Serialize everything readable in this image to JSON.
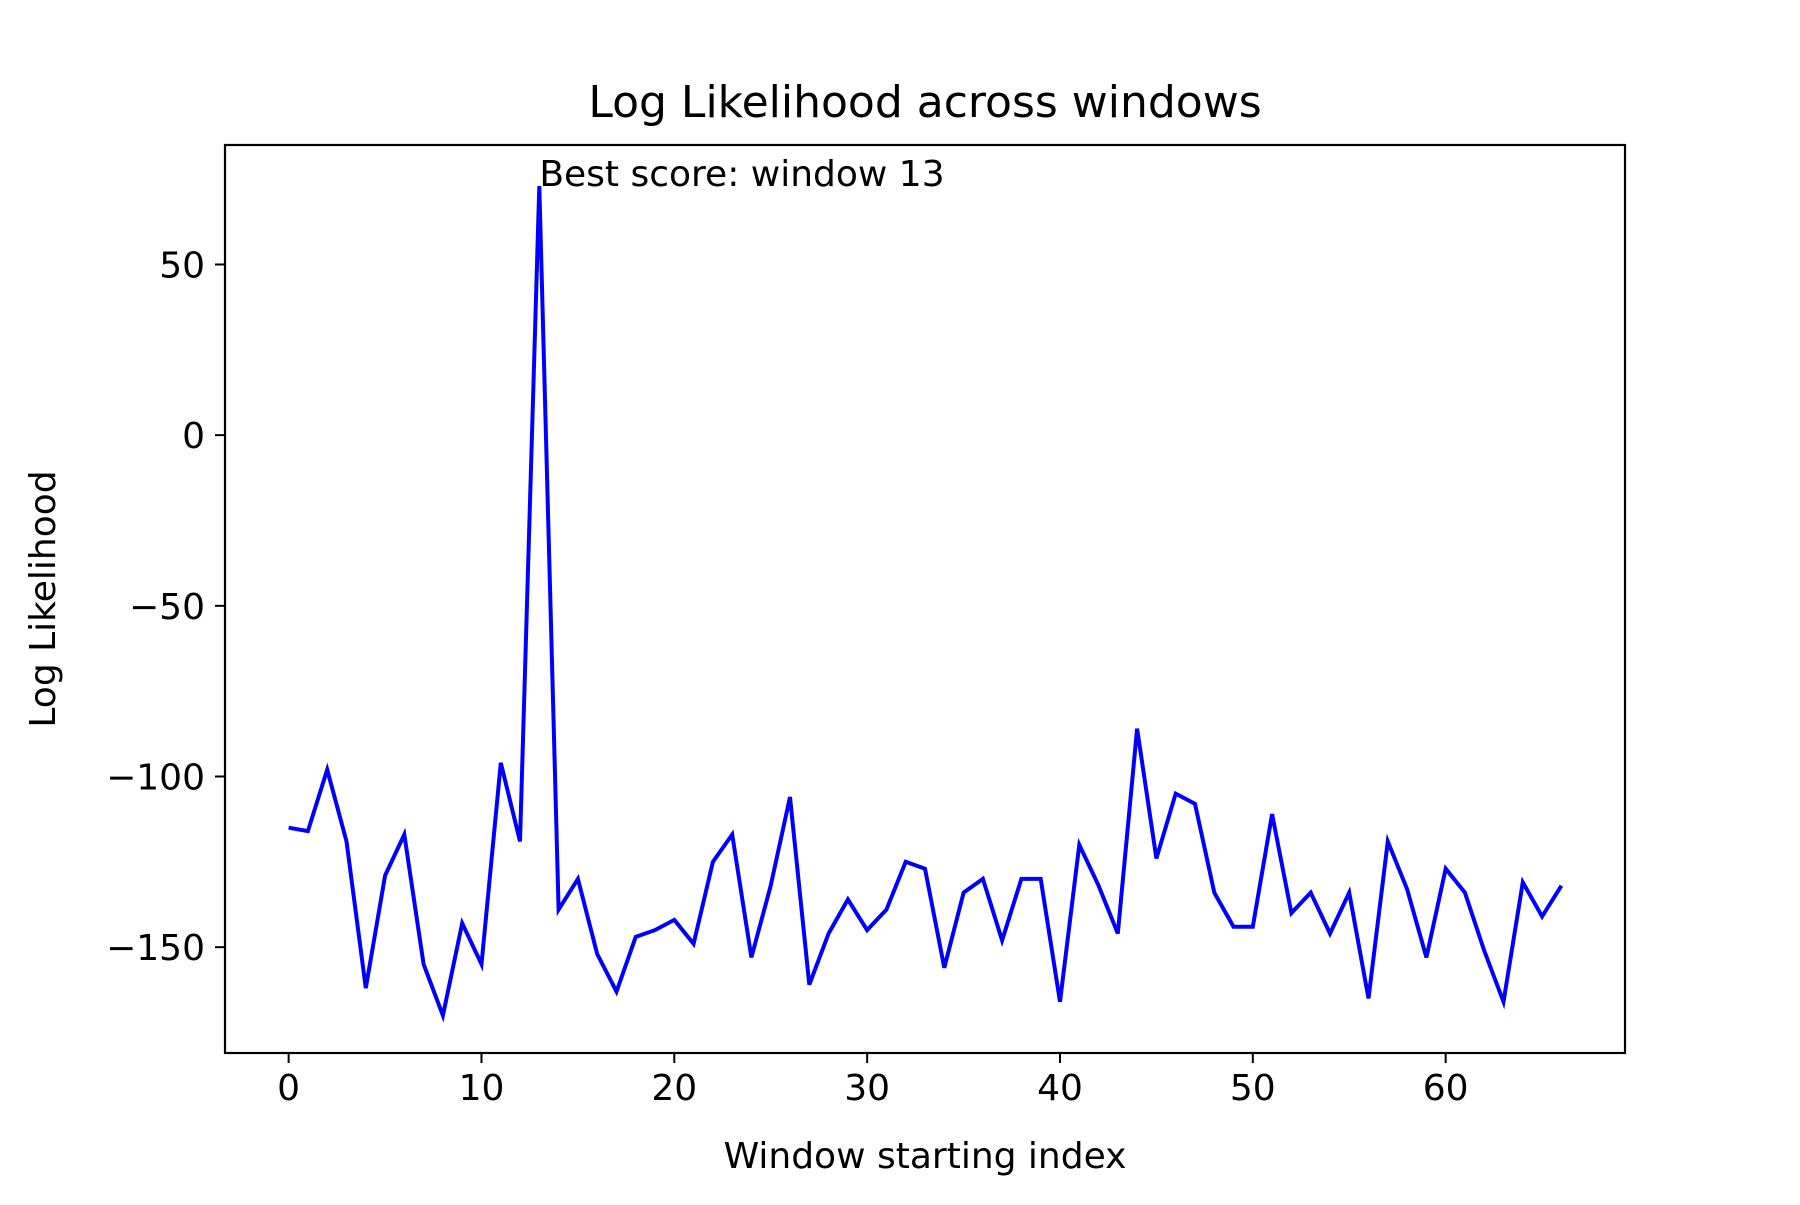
{
  "chart_data": {
    "type": "line",
    "title": "Log Likelihood across windows",
    "xlabel": "Window starting index",
    "ylabel": "Log Likelihood",
    "xlim": [
      -3.3,
      69.3
    ],
    "ylim": [
      -181,
      85
    ],
    "x_ticks": [
      0,
      10,
      20,
      30,
      40,
      50,
      60
    ],
    "y_ticks": [
      50,
      0,
      -50,
      -100,
      -150
    ],
    "x_tick_labels": [
      "0",
      "10",
      "20",
      "30",
      "40",
      "50",
      "60"
    ],
    "y_tick_labels": [
      "50",
      "0",
      "−50",
      "−100",
      "−150"
    ],
    "grid": false,
    "legend": "none",
    "annotation": {
      "text": "Best score: window 13",
      "x": 13,
      "y": 73
    },
    "series": [
      {
        "color": "#0000ff",
        "x": [
          0,
          1,
          2,
          3,
          4,
          5,
          6,
          7,
          8,
          9,
          10,
          11,
          12,
          13,
          14,
          15,
          16,
          17,
          18,
          19,
          20,
          21,
          22,
          23,
          24,
          25,
          26,
          27,
          28,
          29,
          30,
          31,
          32,
          33,
          34,
          35,
          36,
          37,
          38,
          39,
          40,
          41,
          42,
          43,
          44,
          45,
          46,
          47,
          48,
          49,
          50,
          51,
          52,
          53,
          54,
          55,
          56,
          57,
          58,
          59,
          60,
          61,
          62,
          63,
          64,
          65,
          66
        ],
        "values": [
          -115,
          -116,
          -98,
          -119,
          -162,
          -129,
          -117,
          -155,
          -170,
          -143,
          -155,
          -96,
          -119,
          73,
          -139,
          -130,
          -152,
          -163,
          -147,
          -145,
          -142,
          -149,
          -125,
          -117,
          -153,
          -132,
          -106,
          -161,
          -146,
          -136,
          -145,
          -139,
          -125,
          -127,
          -156,
          -134,
          -130,
          -148,
          -130,
          -130,
          -166,
          -120,
          -132,
          -146,
          -86,
          -124,
          -105,
          -108,
          -134,
          -144,
          -144,
          -111,
          -140,
          -134,
          -146,
          -134,
          -165,
          -119,
          -133,
          -153,
          -127,
          -134,
          -151,
          -166,
          -131,
          -141,
          -132
        ]
      }
    ]
  }
}
